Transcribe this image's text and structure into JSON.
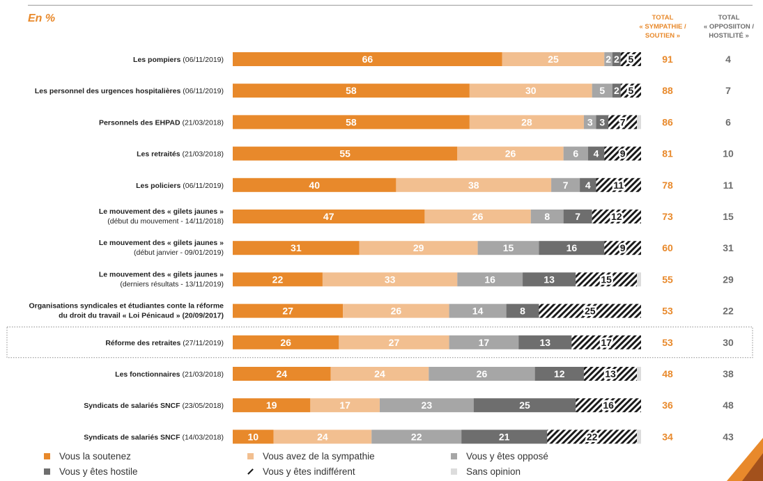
{
  "unit_label": "En %",
  "headers": {
    "sympathy": [
      "TOTAL",
      "« SYMPATHIE /",
      "SOUTIEN »"
    ],
    "opposition": [
      "TOTAL",
      "« OPPOSIITON /",
      "HOSTILITÉ »"
    ]
  },
  "colors": {
    "soutien": "#e8892b",
    "sympathie": "#f2bf90",
    "oppose": "#a6a6a6",
    "hostile": "#6e6e6e",
    "indifferent": "#1a1a1a",
    "sans_opinion": "#dcdcdc",
    "total_sympathy": "#e8892b",
    "total_opposition": "#6d6d6d"
  },
  "chart_data": {
    "type": "bar",
    "orientation": "horizontal-stacked-100",
    "xlim": [
      0,
      100
    ],
    "series": [
      {
        "key": "soutien",
        "name": "Vous la soutenez"
      },
      {
        "key": "sympathie",
        "name": "Vous avez de la sympathie"
      },
      {
        "key": "oppose",
        "name": "Vous y êtes opposé"
      },
      {
        "key": "hostile",
        "name": "Vous y êtes hostile"
      },
      {
        "key": "indifferent",
        "name": "Vous y êtes indifférent"
      },
      {
        "key": "sans_opinion",
        "name": "Sans opinion"
      }
    ],
    "rows": [
      {
        "label_bold": "Les pompiers",
        "label_rest": " (06/11/2019)",
        "values": {
          "soutien": 66,
          "sympathie": 25,
          "oppose": 2,
          "hostile": 2,
          "indifferent": 5,
          "sans_opinion": 0
        },
        "total_sympathy": 91,
        "total_opposition": 4
      },
      {
        "label_bold": "Les personnel des urgences hospitalières",
        "label_rest": " (06/11/2019)",
        "values": {
          "soutien": 58,
          "sympathie": 30,
          "oppose": 5,
          "hostile": 2,
          "indifferent": 5,
          "sans_opinion": 0
        },
        "total_sympathy": 88,
        "total_opposition": 7
      },
      {
        "label_bold": "Personnels des EHPAD",
        "label_rest": "  (21/03/2018)",
        "values": {
          "soutien": 58,
          "sympathie": 28,
          "oppose": 3,
          "hostile": 3,
          "indifferent": 7,
          "sans_opinion": 1
        },
        "total_sympathy": 86,
        "total_opposition": 6
      },
      {
        "label_bold": "Les retraités",
        "label_rest": "  (21/03/2018)",
        "values": {
          "soutien": 55,
          "sympathie": 26,
          "oppose": 6,
          "hostile": 4,
          "indifferent": 9,
          "sans_opinion": 0
        },
        "total_sympathy": 81,
        "total_opposition": 10
      },
      {
        "label_bold": "Les policiers",
        "label_rest": " (06/11/2019)",
        "values": {
          "soutien": 40,
          "sympathie": 38,
          "oppose": 7,
          "hostile": 4,
          "indifferent": 11,
          "sans_opinion": 0
        },
        "total_sympathy": 78,
        "total_opposition": 11
      },
      {
        "label_bold": "Le mouvement des « gilets jaunes »",
        "label_rest": "",
        "label_line2": "(début du mouvement - 14/11/2018)",
        "values": {
          "soutien": 47,
          "sympathie": 26,
          "oppose": 8,
          "hostile": 7,
          "indifferent": 12,
          "sans_opinion": 0
        },
        "total_sympathy": 73,
        "total_opposition": 15
      },
      {
        "label_bold": "Le mouvement des « gilets jaunes »",
        "label_rest": "",
        "label_line2": "(début janvier - 09/01/2019)",
        "values": {
          "soutien": 31,
          "sympathie": 29,
          "oppose": 15,
          "hostile": 16,
          "indifferent": 9,
          "sans_opinion": 0
        },
        "total_sympathy": 60,
        "total_opposition": 31
      },
      {
        "label_bold": "Le mouvement des « gilets jaunes »",
        "label_rest": "",
        "label_line2": "(derniers résultats - 13/11/2019)",
        "values": {
          "soutien": 22,
          "sympathie": 33,
          "oppose": 16,
          "hostile": 13,
          "indifferent": 15,
          "sans_opinion": 1
        },
        "total_sympathy": 55,
        "total_opposition": 29
      },
      {
        "label_bold": "Organisations syndicales et étudiantes conte la réforme",
        "label_rest": "",
        "label_line2": "du droit du travail « Loi Pénicaud » (20/09/2017)",
        "line2_bold": true,
        "values": {
          "soutien": 27,
          "sympathie": 26,
          "oppose": 14,
          "hostile": 8,
          "indifferent": 25,
          "sans_opinion": 0
        },
        "total_sympathy": 53,
        "total_opposition": 22
      },
      {
        "label_bold": "Réforme des retraites",
        "label_rest": " (27/11/2019)",
        "highlight": true,
        "values": {
          "soutien": 26,
          "sympathie": 27,
          "oppose": 17,
          "hostile": 13,
          "indifferent": 17,
          "sans_opinion": 0
        },
        "total_sympathy": 53,
        "total_opposition": 30
      },
      {
        "label_bold": "Les fonctionnaires",
        "label_rest": " (21/03/2018)",
        "values": {
          "soutien": 24,
          "sympathie": 24,
          "oppose": 26,
          "hostile": 12,
          "indifferent": 13,
          "sans_opinion": 1
        },
        "total_sympathy": 48,
        "total_opposition": 38
      },
      {
        "label_bold": "Syndicats de salariés SNCF",
        "label_rest": " (23/05/2018)",
        "values": {
          "soutien": 19,
          "sympathie": 17,
          "oppose": 23,
          "hostile": 25,
          "indifferent": 16,
          "sans_opinion": 0
        },
        "total_sympathy": 36,
        "total_opposition": 48
      },
      {
        "label_bold": "Syndicats de salariés SNCF",
        "label_rest": " (14/03/2018)",
        "values": {
          "soutien": 10,
          "sympathie": 24,
          "oppose": 22,
          "hostile": 21,
          "indifferent": 22,
          "sans_opinion": 1
        },
        "total_sympathy": 34,
        "total_opposition": 43
      }
    ]
  }
}
